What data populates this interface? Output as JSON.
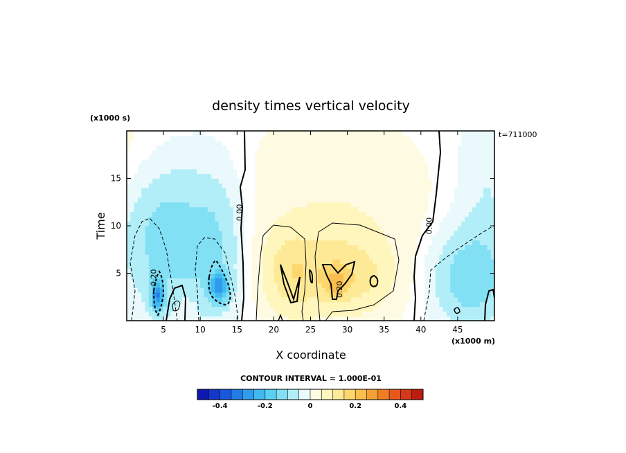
{
  "chart_data": {
    "type": "heatmap",
    "title": "density times vertical velocity",
    "xlabel": "X coordinate",
    "ylabel": "Time",
    "x_unit": "(x1000 m)",
    "y_unit": "(x1000 s)",
    "time_label": "t=711000",
    "xlim": [
      0,
      50
    ],
    "ylim": [
      0,
      20
    ],
    "x_ticks": [
      5,
      10,
      15,
      20,
      25,
      30,
      35,
      40,
      45
    ],
    "y_ticks": [
      5,
      10,
      15
    ],
    "contour_interval_text": "CONTOUR INTERVAL = 1.000E-01",
    "contour_labels": [
      {
        "text": "0.00",
        "x": 15.7,
        "y": 11.4
      },
      {
        "text": "0.00",
        "x": 41.5,
        "y": 10.0
      },
      {
        "text": "-0.20",
        "x": 4.0,
        "y": 4.4
      },
      {
        "text": "0.20",
        "x": 29.3,
        "y": 3.3
      }
    ],
    "colorbar": {
      "range": [
        -0.5,
        0.5
      ],
      "step": 0.05,
      "tick_values": [
        -0.4,
        -0.2,
        0,
        0.2,
        0.4
      ],
      "tick_labels": [
        "-0.4",
        "-0.2",
        "0",
        "0.2",
        "0.4"
      ]
    },
    "features": [
      {
        "name": "negative-core-west",
        "x": 4.2,
        "y": 2.6,
        "value": -0.36
      },
      {
        "name": "negative-core-center-west",
        "x": 12.5,
        "y": 3.5,
        "value": -0.34
      },
      {
        "name": "positive-core-center",
        "x": 22.5,
        "y": 4.8,
        "value": 0.16
      },
      {
        "name": "positive-core-east",
        "x": 28.5,
        "y": 4.0,
        "value": 0.26
      },
      {
        "name": "negative-region-east",
        "x": 46.0,
        "y": 4.5,
        "value": -0.15
      }
    ]
  }
}
